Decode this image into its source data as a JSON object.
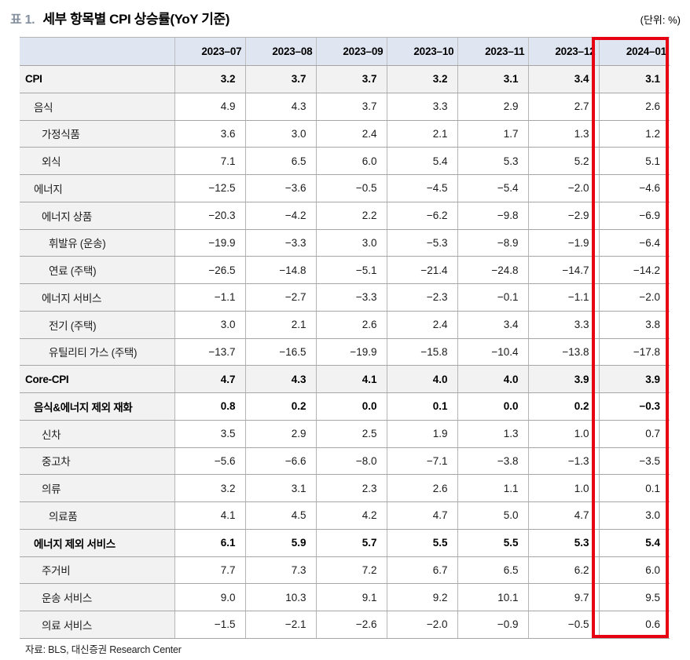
{
  "page": {
    "table_tag": "표 1.",
    "title": "세부 항목별 CPI 상승률(YoY 기준)",
    "unit_note": "(단위: %)",
    "source_note": "자료: BLS, 대신증권 Research Center"
  },
  "colors": {
    "header_bg": "#dfe6f1",
    "shaded_row_bg": "#f2f2f2",
    "grid_line": "#a6a6a6",
    "highlight_red": "#e60012",
    "table_tag_color": "#85909e"
  },
  "chart_data": {
    "type": "table",
    "columns": [
      "2023-07",
      "2023-08",
      "2023-09",
      "2023-10",
      "2023-11",
      "2023-12",
      "2024-01"
    ],
    "highlighted_column": "2024-01",
    "rows": [
      {
        "label": "CPI",
        "indent": 0,
        "bold": true,
        "shaded": true,
        "values": [
          "3.2",
          "3.7",
          "3.7",
          "3.2",
          "3.1",
          "3.4",
          "3.1"
        ]
      },
      {
        "label": "음식",
        "indent": 1,
        "bold": false,
        "shaded": false,
        "values": [
          "4.9",
          "4.3",
          "3.7",
          "3.3",
          "2.9",
          "2.7",
          "2.6"
        ]
      },
      {
        "label": "가정식품",
        "indent": 2,
        "bold": false,
        "shaded": false,
        "values": [
          "3.6",
          "3.0",
          "2.4",
          "2.1",
          "1.7",
          "1.3",
          "1.2"
        ]
      },
      {
        "label": "외식",
        "indent": 2,
        "bold": false,
        "shaded": false,
        "values": [
          "7.1",
          "6.5",
          "6.0",
          "5.4",
          "5.3",
          "5.2",
          "5.1"
        ]
      },
      {
        "label": "에너지",
        "indent": 1,
        "bold": false,
        "shaded": false,
        "values": [
          "-12.5",
          "-3.6",
          "-0.5",
          "-4.5",
          "-5.4",
          "-2.0",
          "-4.6"
        ]
      },
      {
        "label": "에너지 상품",
        "indent": 2,
        "bold": false,
        "shaded": false,
        "values": [
          "-20.3",
          "-4.2",
          "2.2",
          "-6.2",
          "-9.8",
          "-2.9",
          "-6.9"
        ]
      },
      {
        "label": "휘발유 (운송)",
        "indent": 3,
        "bold": false,
        "shaded": false,
        "values": [
          "-19.9",
          "-3.3",
          "3.0",
          "-5.3",
          "-8.9",
          "-1.9",
          "-6.4"
        ]
      },
      {
        "label": "연료 (주택)",
        "indent": 3,
        "bold": false,
        "shaded": false,
        "values": [
          "-26.5",
          "-14.8",
          "-5.1",
          "-21.4",
          "-24.8",
          "-14.7",
          "-14.2"
        ]
      },
      {
        "label": "에너지 서비스",
        "indent": 2,
        "bold": false,
        "shaded": false,
        "values": [
          "-1.1",
          "-2.7",
          "-3.3",
          "-2.3",
          "-0.1",
          "-1.1",
          "-2.0"
        ]
      },
      {
        "label": "전기 (주택)",
        "indent": 3,
        "bold": false,
        "shaded": false,
        "values": [
          "3.0",
          "2.1",
          "2.6",
          "2.4",
          "3.4",
          "3.3",
          "3.8"
        ]
      },
      {
        "label": "유틸리티 가스 (주택)",
        "indent": 3,
        "bold": false,
        "shaded": false,
        "values": [
          "-13.7",
          "-16.5",
          "-19.9",
          "-15.8",
          "-10.4",
          "-13.8",
          "-17.8"
        ]
      },
      {
        "label": "Core-CPI",
        "indent": 0,
        "bold": true,
        "shaded": true,
        "values": [
          "4.7",
          "4.3",
          "4.1",
          "4.0",
          "4.0",
          "3.9",
          "3.9"
        ]
      },
      {
        "label": "음식&에너지 제외 재화",
        "indent": 1,
        "bold": true,
        "shaded": false,
        "values": [
          "0.8",
          "0.2",
          "0.0",
          "0.1",
          "0.0",
          "0.2",
          "-0.3"
        ]
      },
      {
        "label": "신차",
        "indent": 2,
        "bold": false,
        "shaded": false,
        "values": [
          "3.5",
          "2.9",
          "2.5",
          "1.9",
          "1.3",
          "1.0",
          "0.7"
        ]
      },
      {
        "label": "중고차",
        "indent": 2,
        "bold": false,
        "shaded": false,
        "values": [
          "-5.6",
          "-6.6",
          "-8.0",
          "-7.1",
          "-3.8",
          "-1.3",
          "-3.5"
        ]
      },
      {
        "label": "의류",
        "indent": 2,
        "bold": false,
        "shaded": false,
        "values": [
          "3.2",
          "3.1",
          "2.3",
          "2.6",
          "1.1",
          "1.0",
          "0.1"
        ]
      },
      {
        "label": "의료품",
        "indent": 3,
        "bold": false,
        "shaded": false,
        "values": [
          "4.1",
          "4.5",
          "4.2",
          "4.7",
          "5.0",
          "4.7",
          "3.0"
        ]
      },
      {
        "label": "에너지 제외 서비스",
        "indent": 1,
        "bold": true,
        "shaded": false,
        "values": [
          "6.1",
          "5.9",
          "5.7",
          "5.5",
          "5.5",
          "5.3",
          "5.4"
        ]
      },
      {
        "label": "주거비",
        "indent": 2,
        "bold": false,
        "shaded": false,
        "values": [
          "7.7",
          "7.3",
          "7.2",
          "6.7",
          "6.5",
          "6.2",
          "6.0"
        ]
      },
      {
        "label": "운송 서비스",
        "indent": 2,
        "bold": false,
        "shaded": false,
        "values": [
          "9.0",
          "10.3",
          "9.1",
          "9.2",
          "10.1",
          "9.7",
          "9.5"
        ]
      },
      {
        "label": "의료 서비스",
        "indent": 2,
        "bold": false,
        "shaded": false,
        "values": [
          "-1.5",
          "-2.1",
          "-2.6",
          "-2.0",
          "-0.9",
          "-0.5",
          "0.6"
        ]
      }
    ]
  }
}
